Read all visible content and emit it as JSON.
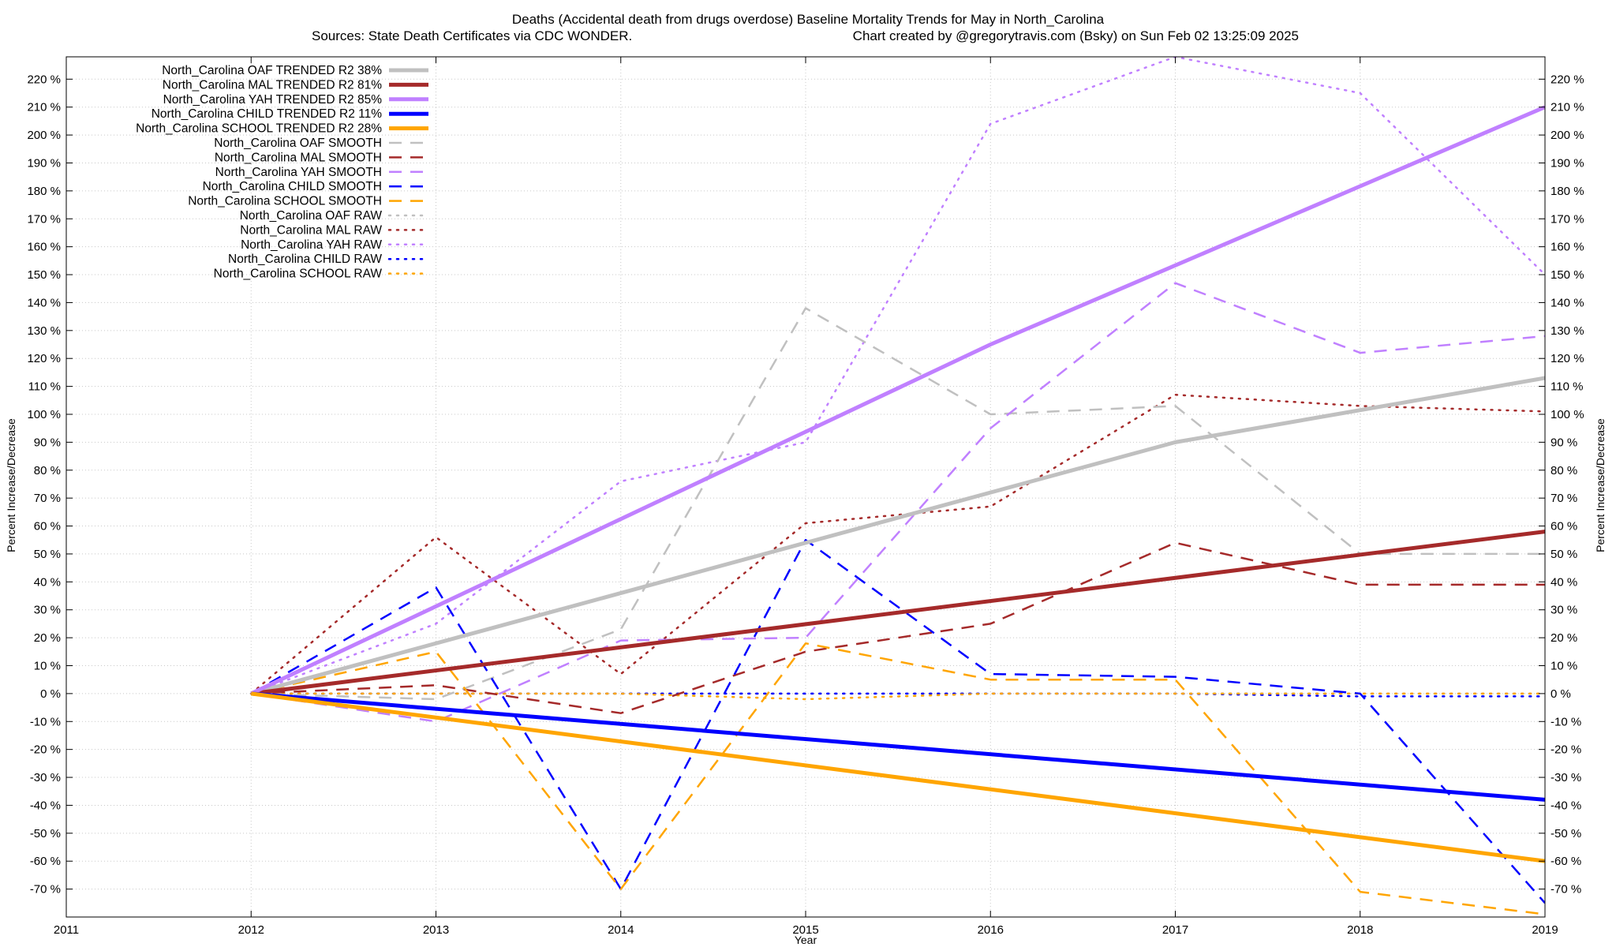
{
  "chart_data": {
    "type": "line",
    "title": "Deaths (Accidental death from drugs overdose)  Baseline Mortality Trends for May in North_Carolina",
    "subtitle_left": "Sources: State Death Certificates via CDC WONDER.",
    "subtitle_right": "Chart created by @gregorytravis.com (Bsky) on Sun Feb 02 13:25:09 2025",
    "xlabel": "Year",
    "ylabel": "Percent Increase/Decrease",
    "ylabel_right": "Percent Increase/Decrease",
    "xlim": [
      2011,
      2019
    ],
    "ylim": [
      -80,
      228
    ],
    "x_ticks": [
      2011,
      2012,
      2013,
      2014,
      2015,
      2016,
      2017,
      2018,
      2019
    ],
    "x_tick_labels": [
      "2011",
      "2012",
      "2013",
      "2014",
      "2015",
      "2016",
      "2017",
      "2018",
      "2019"
    ],
    "y_ticks": [
      -70,
      -60,
      -50,
      -40,
      -30,
      -20,
      -10,
      0,
      10,
      20,
      30,
      40,
      50,
      60,
      70,
      80,
      90,
      100,
      110,
      120,
      130,
      140,
      150,
      160,
      170,
      180,
      190,
      200,
      210,
      220
    ],
    "y_tick_labels": [
      "-70 %",
      "-60 %",
      "-50 %",
      "-40 %",
      "-30 %",
      "-20 %",
      "-10 %",
      "0 %",
      "10 %",
      "20 %",
      "30 %",
      "40 %",
      "50 %",
      "60 %",
      "70 %",
      "80 %",
      "90 %",
      "100 %",
      "110 %",
      "120 %",
      "130 %",
      "140 %",
      "150 %",
      "160 %",
      "170 %",
      "180 %",
      "190 %",
      "200 %",
      "210 %",
      "220 %"
    ],
    "grid": true,
    "legend_position": "top-left",
    "series": [
      {
        "name": "North_Carolina OAF TRENDED R2  38%",
        "style": "trend",
        "color": "#c0c0c0",
        "x": [
          2012,
          2017,
          2019
        ],
        "y": [
          0,
          90,
          113
        ]
      },
      {
        "name": "North_Carolina MAL TRENDED R2  81%",
        "style": "trend",
        "color": "#a52a2a",
        "x": [
          2012,
          2019
        ],
        "y": [
          0,
          58
        ]
      },
      {
        "name": "North_Carolina YAH TRENDED R2  85%",
        "style": "trend",
        "color": "#c080ff",
        "x": [
          2012,
          2016,
          2019
        ],
        "y": [
          0,
          125,
          210
        ]
      },
      {
        "name": "North_Carolina CHILD TRENDED R2  11%",
        "style": "trend",
        "color": "#0000ff",
        "x": [
          2012,
          2019
        ],
        "y": [
          0,
          -38
        ]
      },
      {
        "name": "North_Carolina SCHOOL TRENDED R2  28%",
        "style": "trend",
        "color": "#ffa500",
        "x": [
          2012,
          2019
        ],
        "y": [
          0,
          -60
        ]
      },
      {
        "name": "North_Carolina OAF SMOOTH",
        "style": "smooth",
        "color": "#c0c0c0",
        "x": [
          2012,
          2013,
          2014,
          2015,
          2016,
          2017,
          2018,
          2019
        ],
        "y": [
          0,
          -2,
          23,
          138,
          100,
          103,
          50,
          50
        ]
      },
      {
        "name": "North_Carolina MAL SMOOTH",
        "style": "smooth",
        "color": "#a52a2a",
        "x": [
          2012,
          2013,
          2014,
          2015,
          2016,
          2017,
          2018,
          2019
        ],
        "y": [
          0,
          3,
          -7,
          15,
          25,
          54,
          39,
          39
        ]
      },
      {
        "name": "North_Carolina YAH SMOOTH",
        "style": "smooth",
        "color": "#c080ff",
        "x": [
          2012,
          2013,
          2014,
          2015,
          2016,
          2017,
          2018,
          2019
        ],
        "y": [
          0,
          -10,
          19,
          20,
          95,
          147,
          122,
          128
        ]
      },
      {
        "name": "North_Carolina CHILD SMOOTH",
        "style": "smooth",
        "color": "#0000ff",
        "x": [
          2012,
          2013,
          2014,
          2015,
          2016,
          2017,
          2018,
          2019
        ],
        "y": [
          0,
          38,
          -70,
          55,
          7,
          6,
          0,
          -75
        ]
      },
      {
        "name": "North_Carolina SCHOOL SMOOTH",
        "style": "smooth",
        "color": "#ffa500",
        "x": [
          2012,
          2013,
          2014,
          2015,
          2016,
          2017,
          2018,
          2019
        ],
        "y": [
          0,
          15,
          -70,
          18,
          5,
          5,
          -71,
          -79
        ]
      },
      {
        "name": "North_Carolina OAF RAW",
        "style": "raw",
        "color": "#c0c0c0",
        "x": [
          2012,
          2013,
          2014,
          2015,
          2016,
          2017,
          2018,
          2019
        ],
        "y": [
          0,
          0,
          0,
          0,
          0,
          0,
          0,
          0
        ]
      },
      {
        "name": "North_Carolina MAL RAW",
        "style": "raw",
        "color": "#a52a2a",
        "x": [
          2012,
          2013,
          2014,
          2015,
          2016,
          2017,
          2018,
          2019
        ],
        "y": [
          0,
          56,
          7,
          61,
          67,
          107,
          103,
          101
        ]
      },
      {
        "name": "North_Carolina YAH RAW",
        "style": "raw",
        "color": "#c080ff",
        "x": [
          2012,
          2013,
          2014,
          2015,
          2016,
          2017,
          2018,
          2019
        ],
        "y": [
          0,
          25,
          76,
          90,
          204,
          228,
          215,
          150
        ]
      },
      {
        "name": "North_Carolina CHILD RAW",
        "style": "raw",
        "color": "#0000ff",
        "x": [
          2012,
          2013,
          2014,
          2015,
          2016,
          2017,
          2018,
          2019
        ],
        "y": [
          0,
          0,
          0,
          0,
          0,
          0,
          -1,
          -1
        ]
      },
      {
        "name": "North_Carolina SCHOOL RAW",
        "style": "raw",
        "color": "#ffa500",
        "x": [
          2012,
          2013,
          2014,
          2015,
          2016,
          2017,
          2018,
          2019
        ],
        "y": [
          0,
          0,
          0,
          -2,
          0,
          0,
          0,
          0
        ]
      }
    ]
  }
}
